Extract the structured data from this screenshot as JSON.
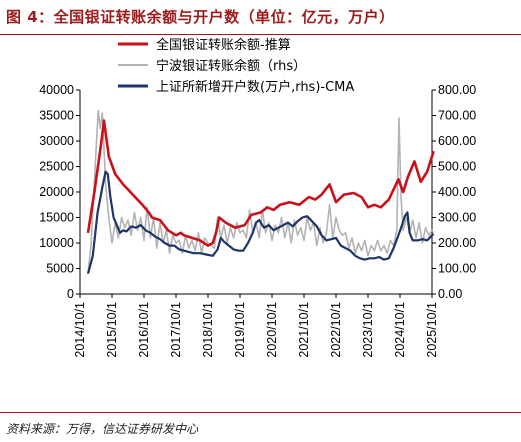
{
  "title": "图 4：全国银证转账余额与开户数（单位：亿元，万户）",
  "source": "资料来源：万得，信达证券研发中心",
  "colors": {
    "transfer": "#c8111a",
    "ningbo": "#b3b3b3",
    "accounts": "#1f3467",
    "accent": "#9b1b1b"
  },
  "chart_data": {
    "type": "line",
    "title": "",
    "xlabel": "",
    "ylabel": "",
    "x_ticks": [
      "2014/10/1",
      "2015/10/1",
      "2016/10/1",
      "2017/10/1",
      "2018/10/1",
      "2019/10/1",
      "2020/10/1",
      "2021/10/1",
      "2022/10/1",
      "2023/10/1",
      "2024/10/1",
      "2025/10/1"
    ],
    "y_left": {
      "lim": [
        0,
        40000
      ],
      "ticks": [
        0,
        5000,
        10000,
        15000,
        20000,
        25000,
        30000,
        35000,
        40000
      ]
    },
    "y_right": {
      "lim": [
        0,
        800
      ],
      "ticks": [
        "0.00",
        "100.00",
        "200.00",
        "300.00",
        "400.00",
        "500.00",
        "600.00",
        "700.00",
        "800.00"
      ]
    },
    "grid": false,
    "legend_position": "top-right",
    "series": [
      {
        "name": "全国银证转账余额-推算",
        "axis": "left",
        "color": "#c8111a",
        "points": [
          [
            2015.0,
            12000
          ],
          [
            2015.2,
            20000
          ],
          [
            2015.4,
            29000
          ],
          [
            2015.5,
            34000
          ],
          [
            2015.65,
            27000
          ],
          [
            2015.85,
            23500
          ],
          [
            2016.1,
            21500
          ],
          [
            2016.4,
            19500
          ],
          [
            2016.7,
            17500
          ],
          [
            2016.9,
            16000
          ],
          [
            2017.0,
            15000
          ],
          [
            2017.25,
            14500
          ],
          [
            2017.5,
            12500
          ],
          [
            2017.75,
            11500
          ],
          [
            2017.9,
            12000
          ],
          [
            2018.0,
            11500
          ],
          [
            2018.25,
            11000
          ],
          [
            2018.5,
            10500
          ],
          [
            2018.75,
            9500
          ],
          [
            2018.9,
            10000
          ],
          [
            2019.0,
            12000
          ],
          [
            2019.1,
            15000
          ],
          [
            2019.3,
            14000
          ],
          [
            2019.6,
            13000
          ],
          [
            2019.9,
            13500
          ],
          [
            2020.1,
            15500
          ],
          [
            2020.4,
            16000
          ],
          [
            2020.6,
            17000
          ],
          [
            2020.8,
            16500
          ],
          [
            2021.0,
            17500
          ],
          [
            2021.3,
            18000
          ],
          [
            2021.6,
            17500
          ],
          [
            2021.9,
            19000
          ],
          [
            2022.1,
            18500
          ],
          [
            2022.3,
            19500
          ],
          [
            2022.55,
            21500
          ],
          [
            2022.75,
            18000
          ],
          [
            2023.0,
            19500
          ],
          [
            2023.3,
            19800
          ],
          [
            2023.55,
            19000
          ],
          [
            2023.75,
            17000
          ],
          [
            2023.95,
            17500
          ],
          [
            2024.15,
            17000
          ],
          [
            2024.4,
            18500
          ],
          [
            2024.7,
            22500
          ],
          [
            2024.85,
            20000
          ],
          [
            2025.0,
            23000
          ],
          [
            2025.2,
            26000
          ],
          [
            2025.4,
            22000
          ],
          [
            2025.6,
            24000
          ],
          [
            2025.8,
            28000
          ]
        ]
      },
      {
        "name": "宁波银证转账余额（rhs）",
        "axis": "right",
        "color": "#b3b3b3",
        "points": [
          [
            2015.0,
            80
          ],
          [
            2015.1,
            200
          ],
          [
            2015.25,
            560
          ],
          [
            2015.32,
            720
          ],
          [
            2015.38,
            650
          ],
          [
            2015.45,
            710
          ],
          [
            2015.55,
            430
          ],
          [
            2015.65,
            300
          ],
          [
            2015.75,
            200
          ],
          [
            2015.85,
            280
          ],
          [
            2015.95,
            220
          ],
          [
            2016.05,
            300
          ],
          [
            2016.15,
            260
          ],
          [
            2016.25,
            290
          ],
          [
            2016.35,
            230
          ],
          [
            2016.45,
            320
          ],
          [
            2016.55,
            250
          ],
          [
            2016.65,
            300
          ],
          [
            2016.75,
            210
          ],
          [
            2016.85,
            340
          ],
          [
            2016.95,
            220
          ],
          [
            2017.05,
            300
          ],
          [
            2017.15,
            180
          ],
          [
            2017.25,
            280
          ],
          [
            2017.35,
            200
          ],
          [
            2017.45,
            250
          ],
          [
            2017.55,
            160
          ],
          [
            2017.65,
            230
          ],
          [
            2017.75,
            200
          ],
          [
            2017.85,
            210
          ],
          [
            2017.95,
            160
          ],
          [
            2018.05,
            230
          ],
          [
            2018.15,
            180
          ],
          [
            2018.25,
            210
          ],
          [
            2018.35,
            170
          ],
          [
            2018.45,
            240
          ],
          [
            2018.55,
            160
          ],
          [
            2018.65,
            220
          ],
          [
            2018.75,
            200
          ],
          [
            2018.85,
            190
          ],
          [
            2018.95,
            180
          ],
          [
            2019.05,
            300
          ],
          [
            2019.15,
            220
          ],
          [
            2019.25,
            270
          ],
          [
            2019.35,
            200
          ],
          [
            2019.45,
            260
          ],
          [
            2019.55,
            220
          ],
          [
            2019.65,
            280
          ],
          [
            2019.75,
            240
          ],
          [
            2019.85,
            250
          ],
          [
            2019.95,
            220
          ],
          [
            2020.05,
            330
          ],
          [
            2020.15,
            240
          ],
          [
            2020.25,
            280
          ],
          [
            2020.35,
            220
          ],
          [
            2020.45,
            330
          ],
          [
            2020.55,
            240
          ],
          [
            2020.65,
            280
          ],
          [
            2020.75,
            210
          ],
          [
            2020.85,
            270
          ],
          [
            2020.95,
            240
          ],
          [
            2021.05,
            300
          ],
          [
            2021.15,
            220
          ],
          [
            2021.25,
            280
          ],
          [
            2021.35,
            200
          ],
          [
            2021.45,
            290
          ],
          [
            2021.55,
            230
          ],
          [
            2021.65,
            260
          ],
          [
            2021.75,
            210
          ],
          [
            2021.85,
            300
          ],
          [
            2021.95,
            250
          ],
          [
            2022.05,
            280
          ],
          [
            2022.15,
            190
          ],
          [
            2022.25,
            260
          ],
          [
            2022.35,
            200
          ],
          [
            2022.45,
            240
          ],
          [
            2022.55,
            350
          ],
          [
            2022.65,
            220
          ],
          [
            2022.75,
            300
          ],
          [
            2022.85,
            250
          ],
          [
            2022.95,
            230
          ],
          [
            2023.05,
            240
          ],
          [
            2023.15,
            180
          ],
          [
            2023.25,
            220
          ],
          [
            2023.35,
            160
          ],
          [
            2023.45,
            200
          ],
          [
            2023.55,
            170
          ],
          [
            2023.65,
            210
          ],
          [
            2023.75,
            150
          ],
          [
            2023.85,
            190
          ],
          [
            2023.95,
            170
          ],
          [
            2024.05,
            210
          ],
          [
            2024.15,
            170
          ],
          [
            2024.25,
            190
          ],
          [
            2024.35,
            160
          ],
          [
            2024.45,
            210
          ],
          [
            2024.55,
            190
          ],
          [
            2024.65,
            250
          ],
          [
            2024.72,
            690
          ],
          [
            2024.78,
            380
          ],
          [
            2024.85,
            250
          ],
          [
            2024.95,
            300
          ],
          [
            2025.05,
            240
          ],
          [
            2025.15,
            290
          ],
          [
            2025.25,
            220
          ],
          [
            2025.35,
            280
          ],
          [
            2025.45,
            200
          ],
          [
            2025.55,
            260
          ],
          [
            2025.65,
            230
          ],
          [
            2025.75,
            250
          ],
          [
            2025.8,
            240
          ]
        ]
      },
      {
        "name": "上证所新增开户数(万户,rhs)-CMA",
        "axis": "right",
        "color": "#1f3467",
        "points": [
          [
            2015.0,
            80
          ],
          [
            2015.15,
            150
          ],
          [
            2015.3,
            320
          ],
          [
            2015.45,
            420
          ],
          [
            2015.55,
            480
          ],
          [
            2015.62,
            470
          ],
          [
            2015.7,
            380
          ],
          [
            2015.8,
            300
          ],
          [
            2015.9,
            270
          ],
          [
            2016.0,
            240
          ],
          [
            2016.1,
            250
          ],
          [
            2016.2,
            245
          ],
          [
            2016.35,
            265
          ],
          [
            2016.5,
            260
          ],
          [
            2016.65,
            270
          ],
          [
            2016.8,
            250
          ],
          [
            2016.95,
            240
          ],
          [
            2017.1,
            225
          ],
          [
            2017.25,
            215
          ],
          [
            2017.4,
            200
          ],
          [
            2017.55,
            190
          ],
          [
            2017.7,
            190
          ],
          [
            2017.85,
            175
          ],
          [
            2018.0,
            170
          ],
          [
            2018.15,
            165
          ],
          [
            2018.3,
            160
          ],
          [
            2018.5,
            160
          ],
          [
            2018.7,
            155
          ],
          [
            2018.9,
            150
          ],
          [
            2019.05,
            175
          ],
          [
            2019.15,
            220
          ],
          [
            2019.25,
            205
          ],
          [
            2019.4,
            190
          ],
          [
            2019.55,
            175
          ],
          [
            2019.7,
            170
          ],
          [
            2019.85,
            170
          ],
          [
            2020.0,
            200
          ],
          [
            2020.15,
            240
          ],
          [
            2020.25,
            280
          ],
          [
            2020.35,
            290
          ],
          [
            2020.5,
            260
          ],
          [
            2020.65,
            270
          ],
          [
            2020.8,
            250
          ],
          [
            2020.95,
            260
          ],
          [
            2021.1,
            270
          ],
          [
            2021.25,
            280
          ],
          [
            2021.4,
            265
          ],
          [
            2021.55,
            285
          ],
          [
            2021.7,
            300
          ],
          [
            2021.85,
            305
          ],
          [
            2022.0,
            285
          ],
          [
            2022.15,
            265
          ],
          [
            2022.3,
            230
          ],
          [
            2022.45,
            210
          ],
          [
            2022.6,
            215
          ],
          [
            2022.75,
            220
          ],
          [
            2022.9,
            190
          ],
          [
            2023.05,
            180
          ],
          [
            2023.2,
            170
          ],
          [
            2023.35,
            150
          ],
          [
            2023.5,
            140
          ],
          [
            2023.65,
            135
          ],
          [
            2023.8,
            140
          ],
          [
            2023.95,
            140
          ],
          [
            2024.1,
            145
          ],
          [
            2024.25,
            135
          ],
          [
            2024.4,
            140
          ],
          [
            2024.55,
            180
          ],
          [
            2024.7,
            230
          ],
          [
            2024.8,
            265
          ],
          [
            2024.9,
            305
          ],
          [
            2024.98,
            320
          ],
          [
            2025.05,
            240
          ],
          [
            2025.15,
            210
          ],
          [
            2025.3,
            210
          ],
          [
            2025.45,
            215
          ],
          [
            2025.6,
            210
          ],
          [
            2025.75,
            230
          ],
          [
            2025.8,
            235
          ]
        ]
      }
    ]
  }
}
